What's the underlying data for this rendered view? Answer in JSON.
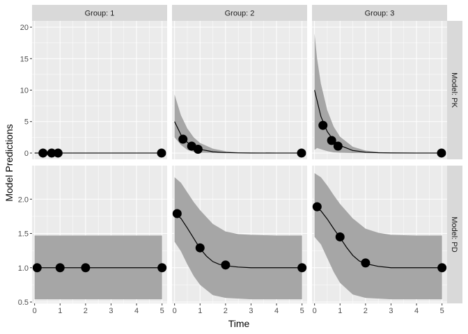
{
  "chart_data": {
    "type": "line",
    "xlabel": "Time",
    "ylabel": "Model Predictions",
    "column_strips": [
      "Group: 1",
      "Group: 2",
      "Group: 3"
    ],
    "row_strips": [
      "Model: PK",
      "Model: PD"
    ],
    "xlim": [
      -0.1,
      5.2
    ],
    "x_ticks": [
      0,
      1,
      2,
      3,
      4,
      5
    ],
    "rows": [
      {
        "ylim": [
          -1.0,
          21.0
        ],
        "y_ticks": [
          0,
          5,
          10,
          15,
          20
        ]
      },
      {
        "ylim": [
          0.48,
          2.49
        ],
        "y_ticks": [
          0.5,
          1.0,
          1.5,
          2.0
        ]
      }
    ],
    "colors": {
      "panel_bg": "#ebebeb",
      "grid": "#ffffff",
      "strip_bg": "#d9d9d9",
      "band": "#a6a6a6",
      "line": "#000000",
      "point": "#000000"
    },
    "panels": [
      {
        "row": 0,
        "col": 0,
        "curve": {
          "x": [
            0,
            5
          ],
          "y": [
            0,
            0
          ]
        },
        "band": null,
        "points": {
          "x": [
            0.33,
            0.67,
            0.92,
            4.98
          ],
          "y": [
            0,
            0,
            0,
            0
          ]
        }
      },
      {
        "row": 0,
        "col": 1,
        "curve": {
          "x": [
            0,
            0.25,
            0.5,
            0.75,
            1.0,
            1.5,
            2.0,
            2.5,
            3.0,
            4.0,
            5.0
          ],
          "y": [
            5.0,
            2.9,
            1.7,
            1.0,
            0.6,
            0.2,
            0.07,
            0.03,
            0.01,
            0,
            0
          ]
        },
        "band": {
          "x": [
            0,
            0.25,
            0.5,
            0.75,
            1.0,
            1.5,
            2.0,
            2.5,
            3.0,
            4.0,
            5.0
          ],
          "lower": [
            2.5,
            1.3,
            0.5,
            0.2,
            0.05,
            0.01,
            0,
            0,
            0,
            0,
            0
          ],
          "upper": [
            9.3,
            6.0,
            3.9,
            2.5,
            1.6,
            0.7,
            0.3,
            0.1,
            0.05,
            0,
            0
          ]
        },
        "points": {
          "x": [
            0.33,
            0.67,
            0.92,
            4.98
          ],
          "y": [
            2.2,
            1.1,
            0.6,
            0
          ]
        }
      },
      {
        "row": 0,
        "col": 2,
        "curve": {
          "x": [
            0,
            0.25,
            0.5,
            0.75,
            1.0,
            1.5,
            2.0,
            2.5,
            3.0,
            4.0,
            5.0
          ],
          "y": [
            10.0,
            5.8,
            3.4,
            2.0,
            1.2,
            0.4,
            0.14,
            0.05,
            0.02,
            0,
            0
          ]
        },
        "band": {
          "x": [
            0,
            0.1,
            0.25,
            0.5,
            0.75,
            1.0,
            1.5,
            2.0,
            2.5,
            3.0,
            4.0,
            5.0
          ],
          "lower": [
            0.5,
            0.8,
            0.6,
            0.3,
            0.1,
            0.05,
            0,
            0,
            0,
            0,
            0,
            0
          ],
          "upper": [
            19.0,
            15.0,
            11.0,
            6.8,
            4.2,
            2.6,
            1.0,
            0.4,
            0.15,
            0.05,
            0,
            0
          ]
        },
        "points": {
          "x": [
            0.33,
            0.67,
            0.92,
            4.98
          ],
          "y": [
            4.4,
            2.0,
            1.1,
            0
          ]
        }
      },
      {
        "row": 1,
        "col": 0,
        "curve": {
          "x": [
            0,
            5
          ],
          "y": [
            1.0,
            1.0
          ]
        },
        "band": {
          "x": [
            0,
            5
          ],
          "lower": [
            0.54,
            0.54
          ],
          "upper": [
            1.47,
            1.47
          ]
        },
        "points": {
          "x": [
            0.1,
            1.0,
            2.0,
            5.0
          ],
          "y": [
            1.0,
            1.0,
            1.0,
            1.0
          ]
        }
      },
      {
        "row": 1,
        "col": 1,
        "curve": {
          "x": [
            0,
            0.25,
            0.5,
            0.75,
            1.0,
            1.25,
            1.5,
            1.75,
            2.0,
            2.5,
            3.0,
            4.0,
            5.0
          ],
          "y": [
            1.79,
            1.72,
            1.58,
            1.43,
            1.28,
            1.17,
            1.09,
            1.05,
            1.03,
            1.01,
            1.0,
            1.0,
            1.0
          ]
        },
        "band": {
          "x": [
            0,
            0.25,
            0.5,
            0.75,
            1.0,
            1.5,
            2.0,
            2.5,
            3.0,
            4.0,
            5.0
          ],
          "lower": [
            1.38,
            1.24,
            1.05,
            0.88,
            0.75,
            0.6,
            0.56,
            0.55,
            0.54,
            0.54,
            0.54
          ],
          "upper": [
            2.32,
            2.24,
            2.1,
            1.96,
            1.84,
            1.64,
            1.53,
            1.49,
            1.48,
            1.47,
            1.47
          ]
        },
        "points": {
          "x": [
            0.1,
            1.0,
            2.0,
            5.0
          ],
          "y": [
            1.79,
            1.29,
            1.04,
            1.0
          ]
        }
      },
      {
        "row": 1,
        "col": 2,
        "curve": {
          "x": [
            0,
            0.25,
            0.5,
            0.75,
            1.0,
            1.25,
            1.5,
            1.75,
            2.0,
            2.5,
            3.0,
            4.0,
            5.0
          ],
          "y": [
            1.89,
            1.83,
            1.71,
            1.57,
            1.44,
            1.3,
            1.18,
            1.1,
            1.06,
            1.02,
            1.0,
            1.0,
            1.0
          ]
        },
        "band": {
          "x": [
            0,
            0.25,
            0.5,
            0.75,
            1.0,
            1.5,
            2.0,
            2.5,
            3.0,
            4.0,
            5.0
          ],
          "lower": [
            1.45,
            1.34,
            1.14,
            0.94,
            0.78,
            0.61,
            0.56,
            0.55,
            0.54,
            0.54,
            0.54
          ],
          "upper": [
            2.38,
            2.32,
            2.2,
            2.06,
            1.93,
            1.72,
            1.57,
            1.51,
            1.48,
            1.47,
            1.47
          ]
        },
        "points": {
          "x": [
            0.1,
            1.0,
            2.0,
            5.0
          ],
          "y": [
            1.89,
            1.45,
            1.07,
            1.0
          ]
        }
      }
    ]
  }
}
